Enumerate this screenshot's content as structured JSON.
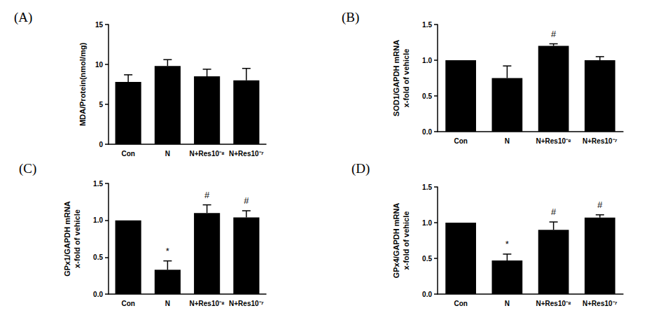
{
  "chart_data": [
    {
      "type": "bar",
      "title": "(A)",
      "y_label": "MDA/Protein(nmol/mg)",
      "categories": [
        "Con",
        "N",
        "N+Res10⁻⁸",
        "N+Res10⁻⁷"
      ],
      "values": [
        7.8,
        9.8,
        8.5,
        8.0
      ],
      "errors": [
        0.9,
        0.8,
        0.9,
        1.5
      ],
      "annotations": [
        null,
        null,
        null,
        null
      ],
      "color": "#000000",
      "ylim": [
        0,
        15
      ],
      "yticks": [
        0,
        5,
        10,
        15
      ],
      "grid": false
    },
    {
      "type": "bar",
      "title": "(B)",
      "y_label": "SOD1/GAPDH mRNA\nx-fold of vehicle",
      "categories": [
        "Con",
        "N",
        "N+Res10⁻⁸",
        "N+Res10⁻⁷"
      ],
      "values": [
        1.0,
        0.75,
        1.2,
        1.0
      ],
      "errors": [
        0,
        0.17,
        0.03,
        0.05
      ],
      "annotations": [
        null,
        null,
        "#",
        null
      ],
      "color": "#000000",
      "ylim": [
        0,
        1.5
      ],
      "yticks": [
        {
          "value": 0,
          "label": "0.0"
        },
        {
          "value": 0.5,
          "label": "0.5"
        },
        {
          "value": 1,
          "label": "1.0"
        },
        {
          "value": 1.5,
          "label": "1.5"
        }
      ],
      "grid": false
    },
    {
      "type": "bar",
      "title": "(C)",
      "y_label": "GPx1/GAPDH mRNA\nx-fold of vehicle",
      "categories": [
        "Con",
        "N",
        "N+Res10⁻⁸",
        "N+Res10⁻⁷"
      ],
      "values": [
        1.0,
        0.33,
        1.1,
        1.04
      ],
      "errors": [
        0,
        0.12,
        0.11,
        0.09
      ],
      "annotations": [
        null,
        "*",
        "#",
        "#"
      ],
      "color": "#000000",
      "ylim": [
        0,
        1.5
      ],
      "yticks": [
        {
          "value": 0,
          "label": "0.0"
        },
        {
          "value": 0.5,
          "label": "0.5"
        },
        {
          "value": 1,
          "label": "1.0"
        },
        {
          "value": 1.5,
          "label": "1.5"
        }
      ],
      "grid": false
    },
    {
      "type": "bar",
      "title": "(D)",
      "y_label": "GPx4/GAPDH mRNA\nx-fold of vehicle",
      "categories": [
        "Con",
        "N",
        "N+Res10⁻⁸",
        "N+Res10⁻⁷"
      ],
      "values": [
        1.0,
        0.47,
        0.9,
        1.07
      ],
      "errors": [
        0,
        0.09,
        0.11,
        0.04
      ],
      "annotations": [
        null,
        "*",
        "#",
        "#"
      ],
      "color": "#000000",
      "ylim": [
        0,
        1.5
      ],
      "yticks": [
        {
          "value": 0,
          "label": "0.0"
        },
        {
          "value": 0.5,
          "label": "0.5"
        },
        {
          "value": 1,
          "label": "1.0"
        },
        {
          "value": 1.5,
          "label": "1.5"
        }
      ],
      "grid": false
    }
  ]
}
